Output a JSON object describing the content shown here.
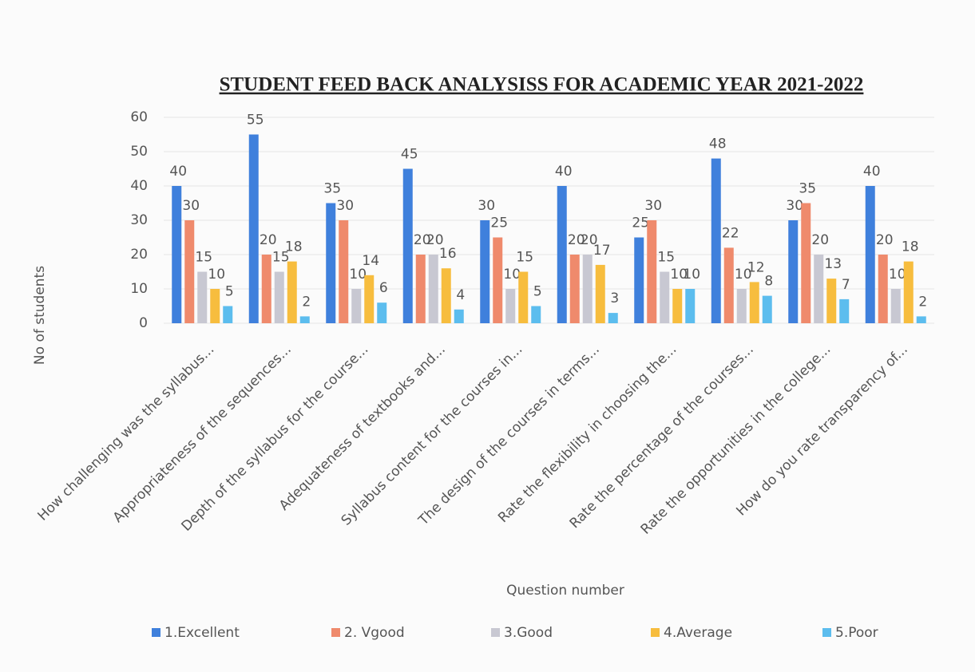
{
  "chart_data": {
    "type": "bar",
    "title": "STUDENT FEED BACK ANALYSISS FOR ACADEMIC YEAR 2021-2022",
    "x_label": "Question number",
    "y_label": "No of students",
    "categories": [
      "How challenging was the syllabus...",
      "Appropriateness of the sequences...",
      "Depth of the syllabus for the course...",
      "Adequateness of textbooks and...",
      "Syllabus content for the courses in...",
      "The design of the courses in terms...",
      "Rate the flexibility in choosing the...",
      "Rate the percentage of the courses...",
      "Rate the opportunities in the college...",
      "How do you rate transparency of..."
    ],
    "series": [
      {
        "name": "1.Excellent",
        "color": "#3f80dc",
        "values": [
          40,
          55,
          35,
          45,
          30,
          40,
          25,
          48,
          30,
          40
        ]
      },
      {
        "name": "2. Vgood",
        "color": "#ef8a6c",
        "values": [
          30,
          20,
          30,
          20,
          25,
          20,
          30,
          22,
          35,
          20
        ]
      },
      {
        "name": "3.Good",
        "color": "#c8c8d2",
        "values": [
          15,
          15,
          10,
          20,
          10,
          20,
          15,
          10,
          20,
          10
        ]
      },
      {
        "name": "4.Average",
        "color": "#f7bd3e",
        "values": [
          10,
          18,
          14,
          16,
          15,
          17,
          10,
          12,
          13,
          18
        ]
      },
      {
        "name": "5.Poor",
        "color": "#5cbdee",
        "values": [
          5,
          2,
          6,
          4,
          5,
          3,
          10,
          8,
          7,
          2
        ]
      }
    ],
    "ylim": [
      0,
      60
    ],
    "yticks": [
      0,
      10,
      20,
      30,
      40,
      50,
      60
    ],
    "grid": true,
    "legend": "bottom"
  }
}
